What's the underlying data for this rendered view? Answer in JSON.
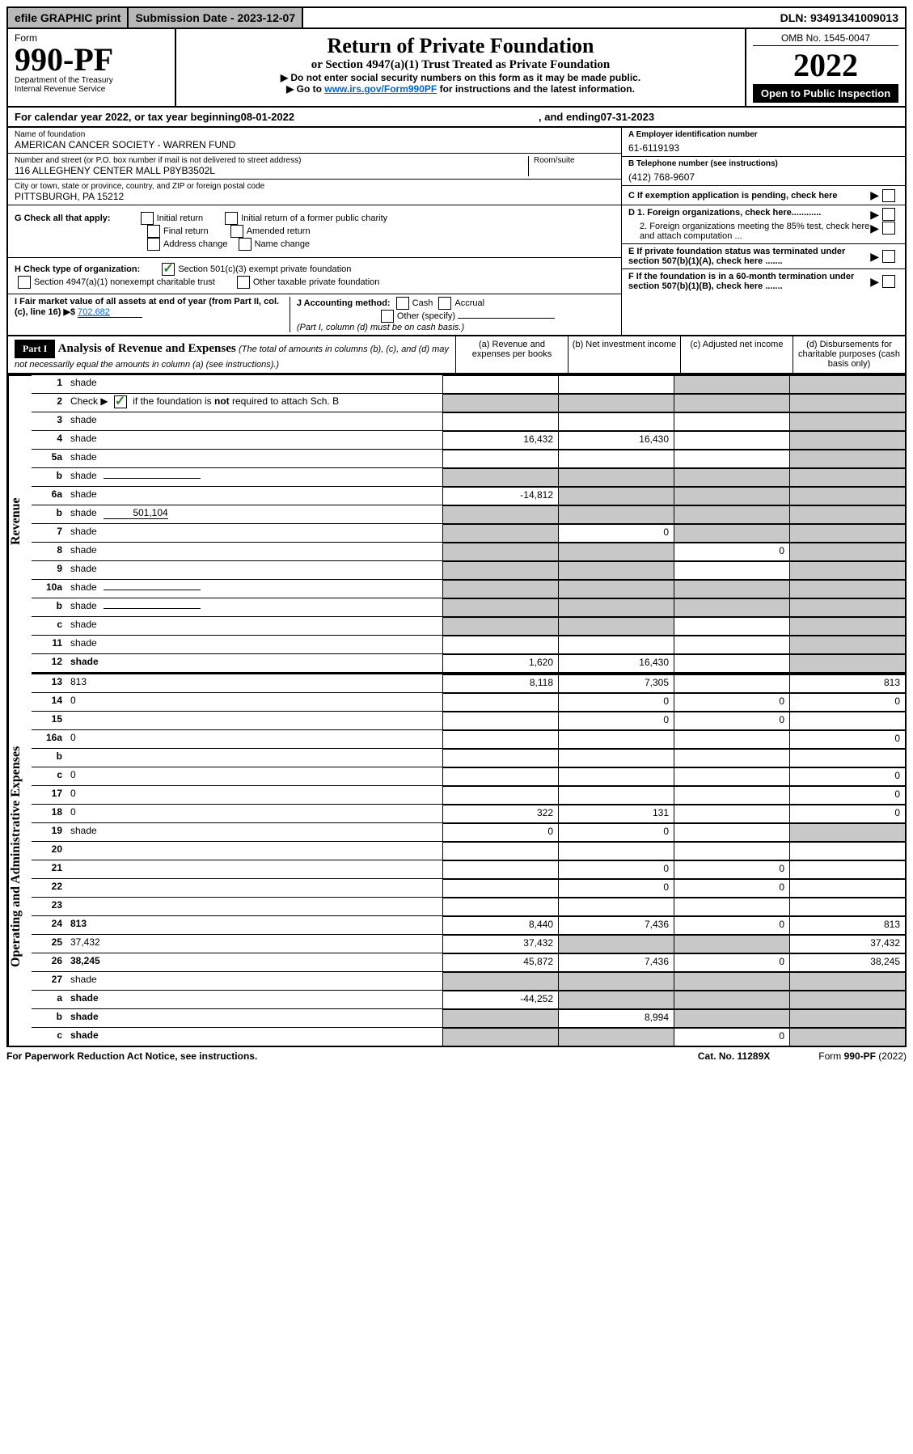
{
  "topbar": {
    "efile": "efile GRAPHIC print",
    "submission": "Submission Date - 2023-12-07",
    "dln": "DLN: 93491341009013"
  },
  "header": {
    "form_label": "Form",
    "form_number": "990-PF",
    "dept": "Department of the Treasury",
    "irs": "Internal Revenue Service",
    "title": "Return of Private Foundation",
    "subtitle": "or Section 4947(a)(1) Trust Treated as Private Foundation",
    "instr1": "▶ Do not enter social security numbers on this form as it may be made public.",
    "instr2_pre": "▶ Go to ",
    "instr2_link": "www.irs.gov/Form990PF",
    "instr2_post": " for instructions and the latest information.",
    "omb": "OMB No. 1545-0047",
    "year": "2022",
    "open": "Open to Public Inspection"
  },
  "calyear": {
    "pre": "For calendar year 2022, or tax year beginning ",
    "begin": "08-01-2022",
    "mid": " , and ending ",
    "end": "07-31-2023"
  },
  "id": {
    "name_label": "Name of foundation",
    "name": "AMERICAN CANCER SOCIETY - WARREN FUND",
    "addr_label": "Number and street (or P.O. box number if mail is not delivered to street address)",
    "addr": "116 ALLEGHENY CENTER MALL P8YB3502L",
    "room_label": "Room/suite",
    "city_label": "City or town, state or province, country, and ZIP or foreign postal code",
    "city": "PITTSBURGH, PA  15212",
    "ein_label": "A Employer identification number",
    "ein": "61-6119193",
    "tel_label": "B Telephone number (see instructions)",
    "tel": "(412) 768-9607",
    "c": "C If exemption application is pending, check here",
    "d1": "D 1. Foreign organizations, check here............",
    "d2": "2. Foreign organizations meeting the 85% test, check here and attach computation ...",
    "e": "E  If private foundation status was terminated under section 507(b)(1)(A), check here .......",
    "f": "F  If the foundation is in a 60-month termination under section 507(b)(1)(B), check here .......",
    "g_label": "G Check all that apply:",
    "g_opts": [
      "Initial return",
      "Initial return of a former public charity",
      "Final return",
      "Amended return",
      "Address change",
      "Name change"
    ],
    "h_label": "H Check type of organization:",
    "h_opts": [
      "Section 501(c)(3) exempt private foundation",
      "Section 4947(a)(1) nonexempt charitable trust",
      "Other taxable private foundation"
    ],
    "i_label": "I Fair market value of all assets at end of year (from Part II, col. (c), line 16) ▶$ ",
    "i_val": "702,682",
    "j_label": "J Accounting method:",
    "j_opts": [
      "Cash",
      "Accrual",
      "Other (specify)"
    ],
    "j_note": "(Part I, column (d) must be on cash basis.)"
  },
  "part1": {
    "label": "Part I",
    "title": "Analysis of Revenue and Expenses",
    "title_note": "(The total of amounts in columns (b), (c), and (d) may not necessarily equal the amounts in column (a) (see instructions).)",
    "cols": {
      "a": "(a)  Revenue and expenses per books",
      "b": "(b)  Net investment income",
      "c": "(c)  Adjusted net income",
      "d": "(d)  Disbursements for charitable purposes (cash basis only)"
    }
  },
  "side": {
    "rev": "Revenue",
    "exp": "Operating and Administrative Expenses"
  },
  "lines": [
    {
      "n": "1",
      "d": "shade",
      "a": "",
      "b": "",
      "c": "shade"
    },
    {
      "n": "2",
      "d": "shade",
      "a": "shade",
      "b": "shade",
      "c": "shade",
      "nobind": true
    },
    {
      "n": "3",
      "d": "shade",
      "a": "",
      "b": "",
      "c": ""
    },
    {
      "n": "4",
      "d": "shade",
      "a": "16,432",
      "b": "16,430",
      "c": ""
    },
    {
      "n": "5a",
      "d": "shade",
      "a": "",
      "b": "",
      "c": ""
    },
    {
      "n": "b",
      "d": "shade",
      "a": "shade",
      "b": "shade",
      "c": "shade",
      "inline": true
    },
    {
      "n": "6a",
      "d": "shade",
      "a": "-14,812",
      "b": "shade",
      "c": "shade"
    },
    {
      "n": "b",
      "d": "shade",
      "inline_val": "501,104",
      "a": "shade",
      "b": "shade",
      "c": "shade"
    },
    {
      "n": "7",
      "d": "shade",
      "a": "shade",
      "b": "0",
      "c": "shade"
    },
    {
      "n": "8",
      "d": "shade",
      "a": "shade",
      "b": "shade",
      "c": "0"
    },
    {
      "n": "9",
      "d": "shade",
      "a": "shade",
      "b": "shade",
      "c": ""
    },
    {
      "n": "10a",
      "d": "shade",
      "a": "shade",
      "b": "shade",
      "c": "shade",
      "inline": true
    },
    {
      "n": "b",
      "d": "shade",
      "a": "shade",
      "b": "shade",
      "c": "shade",
      "inline": true
    },
    {
      "n": "c",
      "d": "shade",
      "a": "shade",
      "b": "shade",
      "c": ""
    },
    {
      "n": "11",
      "d": "shade",
      "a": "",
      "b": "",
      "c": ""
    },
    {
      "n": "12",
      "d": "shade",
      "a": "1,620",
      "b": "16,430",
      "c": "",
      "bold": true
    }
  ],
  "exp_lines": [
    {
      "n": "13",
      "d": "813",
      "a": "8,118",
      "b": "7,305",
      "c": ""
    },
    {
      "n": "14",
      "d": "0",
      "a": "",
      "b": "0",
      "c": "0"
    },
    {
      "n": "15",
      "d": "",
      "a": "",
      "b": "0",
      "c": "0"
    },
    {
      "n": "16a",
      "d": "0",
      "a": "",
      "b": "",
      "c": ""
    },
    {
      "n": "b",
      "d": "",
      "a": "",
      "b": "",
      "c": ""
    },
    {
      "n": "c",
      "d": "0",
      "a": "",
      "b": "",
      "c": ""
    },
    {
      "n": "17",
      "d": "0",
      "a": "",
      "b": "",
      "c": ""
    },
    {
      "n": "18",
      "d": "0",
      "a": "322",
      "b": "131",
      "c": ""
    },
    {
      "n": "19",
      "d": "shade",
      "a": "0",
      "b": "0",
      "c": ""
    },
    {
      "n": "20",
      "d": "",
      "a": "",
      "b": "",
      "c": ""
    },
    {
      "n": "21",
      "d": "",
      "a": "",
      "b": "0",
      "c": "0"
    },
    {
      "n": "22",
      "d": "",
      "a": "",
      "b": "0",
      "c": "0"
    },
    {
      "n": "23",
      "d": "",
      "a": "",
      "b": "",
      "c": ""
    },
    {
      "n": "24",
      "d": "813",
      "a": "8,440",
      "b": "7,436",
      "c": "0",
      "bold": true
    },
    {
      "n": "25",
      "d": "37,432",
      "a": "37,432",
      "b": "shade",
      "c": "shade"
    },
    {
      "n": "26",
      "d": "38,245",
      "a": "45,872",
      "b": "7,436",
      "c": "0",
      "bold": true
    },
    {
      "n": "27",
      "d": "shade",
      "a": "shade",
      "b": "shade",
      "c": "shade"
    },
    {
      "n": "a",
      "d": "shade",
      "a": "-44,252",
      "b": "shade",
      "c": "shade",
      "bold": true
    },
    {
      "n": "b",
      "d": "shade",
      "a": "shade",
      "b": "8,994",
      "c": "shade",
      "bold": true
    },
    {
      "n": "c",
      "d": "shade",
      "a": "shade",
      "b": "shade",
      "c": "0",
      "bold": true
    }
  ],
  "line2": {
    "pre": "Check ▶ ",
    "post": " if the foundation is ",
    "not": "not",
    "post2": " required to attach Sch. B"
  },
  "footer": {
    "left": "For Paperwork Reduction Act Notice, see instructions.",
    "mid": "Cat. No. 11289X",
    "right": "Form 990-PF (2022)"
  }
}
